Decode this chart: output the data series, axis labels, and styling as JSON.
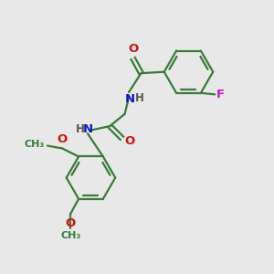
{
  "bg_color": "#e8e8e8",
  "bond_color": "#3a7a3a",
  "N_color": "#1414cc",
  "O_color": "#cc1414",
  "F_color": "#cc14cc",
  "line_width": 1.6,
  "font_size": 8.5,
  "figsize": [
    3.0,
    3.0
  ],
  "dpi": 100,
  "xlim": [
    0,
    10
  ],
  "ylim": [
    0,
    10
  ]
}
